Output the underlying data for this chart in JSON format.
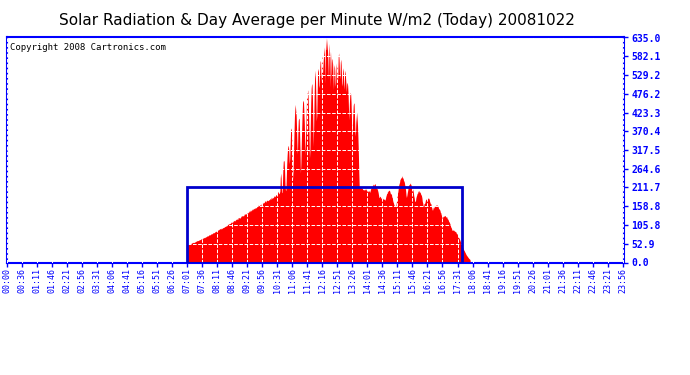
{
  "title": "Solar Radiation & Day Average per Minute W/m2 (Today) 20081022",
  "copyright_text": "Copyright 2008 Cartronics.com",
  "y_ticks": [
    0.0,
    52.9,
    105.8,
    158.8,
    211.7,
    264.6,
    317.5,
    370.4,
    423.3,
    476.2,
    529.2,
    582.1,
    635.0
  ],
  "y_max": 635.0,
  "y_min": 0.0,
  "fill_color": "#ff0000",
  "avg_box_color": "#0000cc",
  "bg_color": "#ffffff",
  "grid_color": "#b0b0b0",
  "title_fontsize": 11,
  "copyright_fontsize": 6.5,
  "tick_fontsize": 7,
  "n_minutes": 1440,
  "sunrise_minute": 420,
  "sunset_minute": 1060,
  "avg_value": 211.7,
  "tick_interval": 35,
  "x_tick_labels": [
    "00:00",
    "00:36",
    "01:11",
    "01:46",
    "02:21",
    "02:56",
    "03:31",
    "04:06",
    "04:41",
    "05:16",
    "05:51",
    "06:26",
    "07:01",
    "07:36",
    "08:11",
    "08:46",
    "09:21",
    "09:56",
    "10:31",
    "11:06",
    "11:41",
    "12:16",
    "12:51",
    "13:26",
    "14:01",
    "14:36",
    "15:11",
    "15:46",
    "16:21",
    "16:56",
    "17:31",
    "18:06",
    "18:41",
    "19:16",
    "19:51",
    "20:26",
    "21:01",
    "21:36",
    "22:11",
    "22:46",
    "23:21",
    "23:56"
  ]
}
